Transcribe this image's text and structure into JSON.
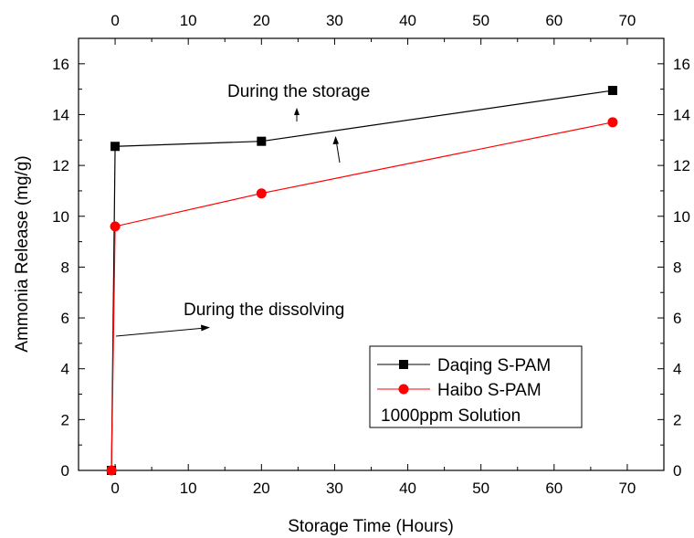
{
  "chart_data": {
    "type": "line",
    "xlabel": "Storage Time (Hours)",
    "ylabel": "Ammonia Release (mg/g)",
    "xlim": [
      -5,
      75
    ],
    "ylim": [
      0,
      17
    ],
    "x_ticks": [
      0,
      10,
      20,
      30,
      40,
      50,
      60,
      70
    ],
    "y_ticks": [
      0,
      2,
      4,
      6,
      8,
      10,
      12,
      14,
      16
    ],
    "grid": false,
    "mirrored_axes": "top and right axes repeat the tick labels",
    "series": [
      {
        "name": "Daqing S-PAM",
        "color": "#000000",
        "marker": "square",
        "x": [
          -0.5,
          0,
          20,
          68
        ],
        "y": [
          0,
          12.75,
          12.95,
          14.95
        ]
      },
      {
        "name": "Haibo S-PAM",
        "color": "#ff0000",
        "marker": "circle",
        "x": [
          -0.5,
          0,
          20,
          68
        ],
        "y": [
          0,
          9.6,
          10.9,
          13.7
        ]
      }
    ],
    "legend": {
      "placement": "bottom-right",
      "note": "1000ppm Solution"
    },
    "annotations": [
      {
        "text": "During the storage"
      },
      {
        "text": "During the dissolving"
      }
    ]
  }
}
